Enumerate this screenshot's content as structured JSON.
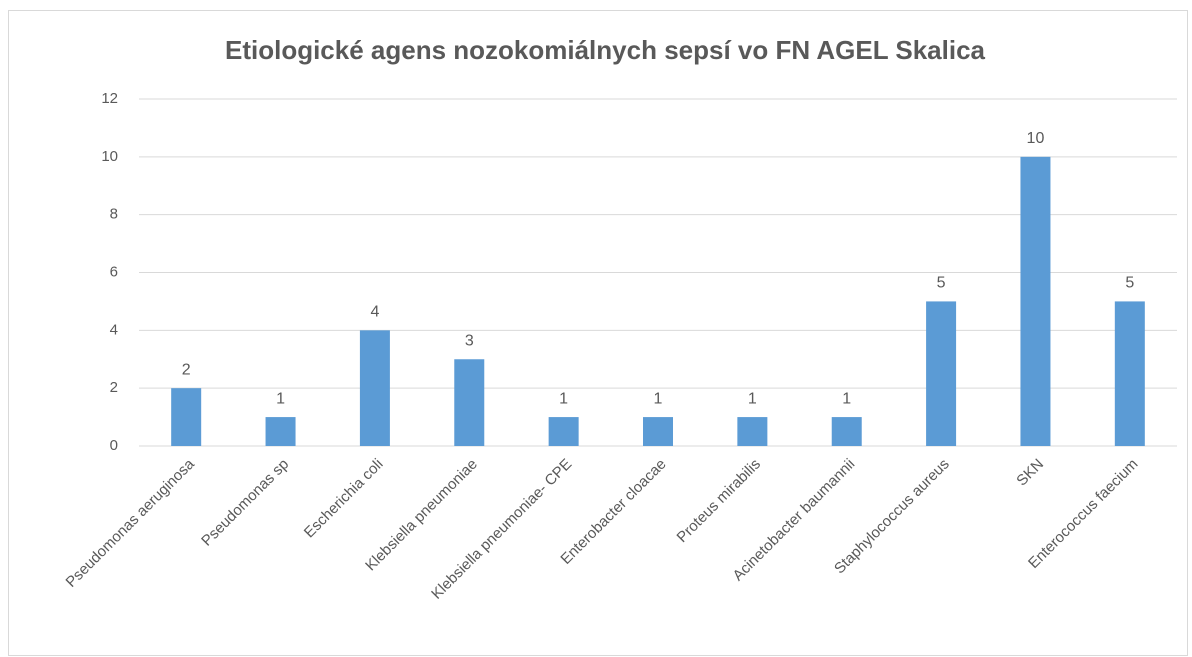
{
  "chart_data": {
    "type": "bar",
    "title": "Etiologické agens nozokomiálnych sepsí vo FN AGEL  Skalica",
    "categories": [
      "Pseudomonas aeruginosa",
      "Pseudomonas sp",
      "Escherichia coli",
      "Klebsiella pneumoniae",
      "Klebsiella pneumoniae- CPE",
      "Enterobacter cloacae",
      "Proteus mirabilis",
      "Acinetobacter baumannii",
      "Staphylococcus aureus",
      "SKN",
      "Enterococcus faecium"
    ],
    "values": [
      2,
      1,
      4,
      3,
      1,
      1,
      1,
      1,
      5,
      10,
      5
    ],
    "color": "#5b9bd5",
    "ylim": [
      0,
      12
    ],
    "yticks": [
      0,
      2,
      4,
      6,
      8,
      10,
      12
    ],
    "grid": true,
    "data_labels": true
  }
}
